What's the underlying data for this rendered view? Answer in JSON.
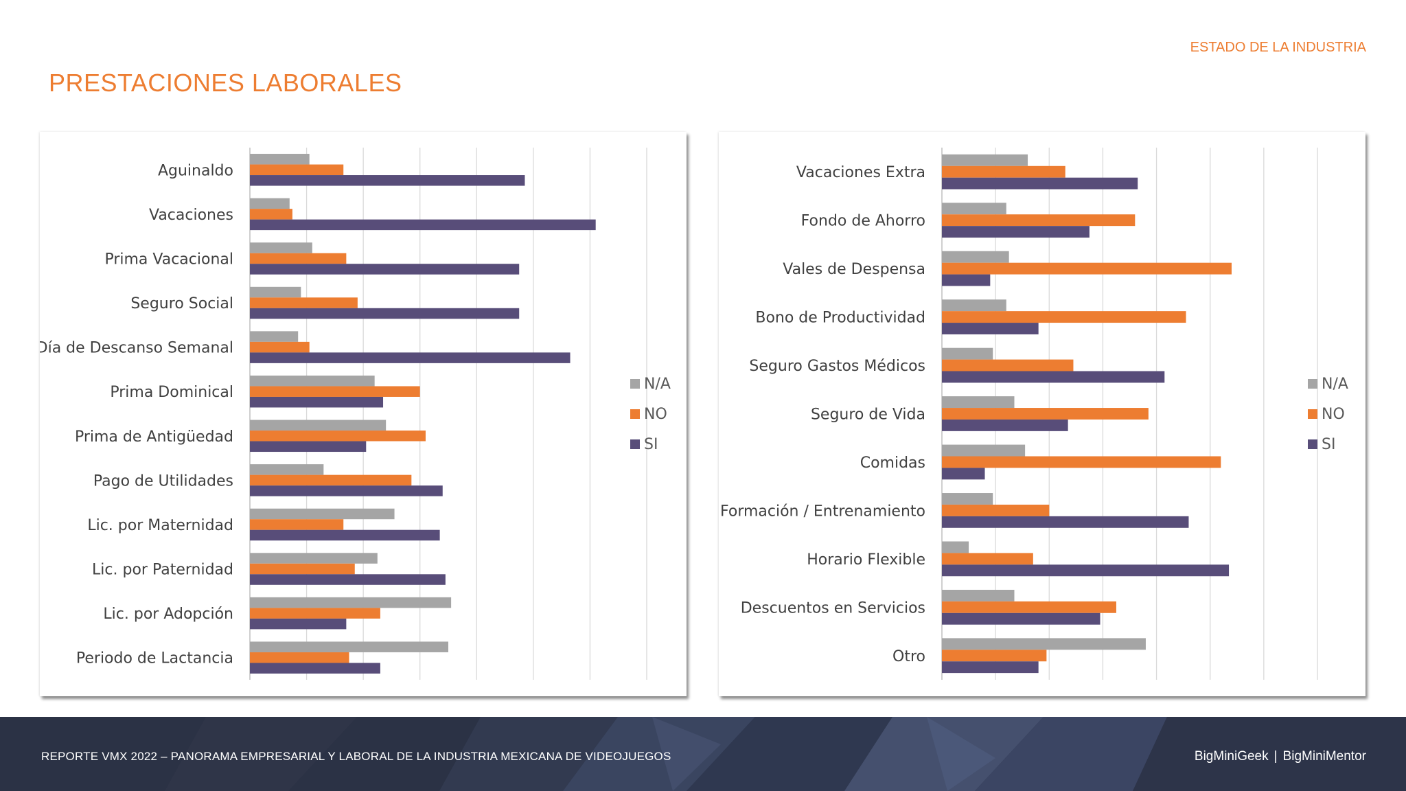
{
  "header": {
    "title": "PRESTACIONES LABORALES",
    "section": "ESTADO DE LA INDUSTRIA"
  },
  "colors": {
    "accent": "#ED7D31",
    "na": "#A5A5A5",
    "no": "#ED7D31",
    "si": "#584D79",
    "grid": "#D9D9D9",
    "footer_bg": "#2b3245"
  },
  "footer": {
    "report": "REPORTE VMX 2022 – PANORAMA EMPRESARIAL Y LABORAL DE LA INDUSTRIA MEXICANA DE VIDEOJUEGOS",
    "brand_a": "BigMiniGeek",
    "separator": "|",
    "brand_b": "BigMiniMentor"
  },
  "chart_data": [
    {
      "type": "bar",
      "orientation": "horizontal",
      "title": "",
      "xlim": [
        0,
        70
      ],
      "grid": true,
      "legend_position": "right",
      "categories": [
        "Aguinaldo",
        "Vacaciones",
        "Prima Vacacional",
        "Seguro Social",
        "Día de Descanso Semanal",
        "Prima Dominical",
        "Prima de Antigüedad",
        "Pago de Utilidades",
        "Lic. por Maternidad",
        "Lic. por Paternidad",
        "Lic. por Adopción",
        "Periodo de Lactancia"
      ],
      "series": [
        {
          "name": "N/A",
          "values": [
            10.5,
            7,
            11,
            9,
            8.5,
            22,
            24,
            13,
            25.5,
            22.5,
            35.5,
            35
          ]
        },
        {
          "name": "NO",
          "values": [
            16.5,
            7.5,
            17,
            19,
            10.5,
            30,
            31,
            28.5,
            16.5,
            18.5,
            23,
            17.5
          ]
        },
        {
          "name": "SI",
          "values": [
            48.5,
            61,
            47.5,
            47.5,
            56.5,
            23.5,
            20.5,
            34,
            33.5,
            34.5,
            17,
            23
          ]
        }
      ]
    },
    {
      "type": "bar",
      "orientation": "horizontal",
      "title": "",
      "xlim": [
        0,
        70
      ],
      "grid": true,
      "legend_position": "right",
      "categories": [
        "Vacaciones Extra",
        "Fondo de Ahorro",
        "Vales de Despensa",
        "Bono de Productividad",
        "Seguro Gastos Médicos",
        "Seguro de Vida",
        "Comidas",
        "Formación / Entrenamiento",
        "Horario Flexible",
        "Descuentos en Servicios",
        "Otro"
      ],
      "series": [
        {
          "name": "N/A",
          "values": [
            16,
            12,
            12.5,
            12,
            9.5,
            13.5,
            15.5,
            9.5,
            5,
            13.5,
            38
          ]
        },
        {
          "name": "NO",
          "values": [
            23,
            36,
            54,
            45.5,
            24.5,
            38.5,
            52,
            20,
            17,
            32.5,
            19.5
          ]
        },
        {
          "name": "SI",
          "values": [
            36.5,
            27.5,
            9,
            18,
            41.5,
            23.5,
            8,
            46,
            53.5,
            29.5,
            18
          ]
        }
      ]
    }
  ]
}
